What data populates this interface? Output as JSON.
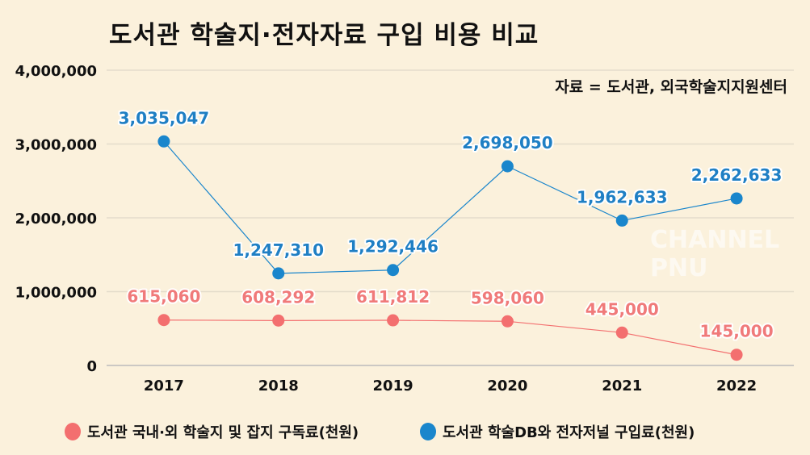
{
  "chart_data": {
    "type": "line",
    "title": "도서관 학술지·전자자료 구입 비용 비교",
    "source_note": "자료 = 도서관, 외국학술지지원센터",
    "categories": [
      "2017",
      "2018",
      "2019",
      "2020",
      "2021",
      "2022"
    ],
    "ylim": [
      0,
      4000000
    ],
    "yticks": [
      0,
      1000000,
      2000000,
      3000000,
      4000000
    ],
    "ytick_labels": [
      "0",
      "1,000,000",
      "2,000,000",
      "3,000,000",
      "4,000,000"
    ],
    "grid": true,
    "legend_position": "bottom",
    "series": [
      {
        "name": "도서관 국내·외 학술지 및 잡지 구독료(천원)",
        "color": "#f36f6f",
        "label_color": "#f07a7a",
        "values": [
          615060,
          608292,
          611812,
          598060,
          445000,
          145000
        ],
        "labels": [
          "615,060",
          "608,292",
          "611,812",
          "598,060",
          "445,000",
          "145,000"
        ]
      },
      {
        "name": "도서관 학술DB와 전자저널 구입료(천원)",
        "color": "#1a86cc",
        "label_color": "#1f7fc4",
        "values": [
          3035047,
          1247310,
          1292446,
          2698050,
          1962633,
          2262633
        ],
        "labels": [
          "3,035,047",
          "1,247,310",
          "1,292,446",
          "2,698,050",
          "1,962,633",
          "2,262,633"
        ]
      }
    ]
  },
  "watermark": "CHANNEL PNU"
}
